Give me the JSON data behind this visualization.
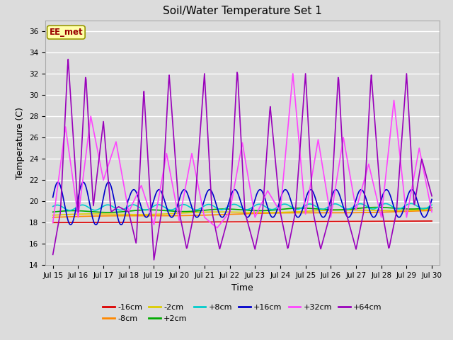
{
  "title": "Soil/Water Temperature Set 1",
  "xlabel": "Time",
  "ylabel": "Temperature (C)",
  "ylim": [
    14,
    37
  ],
  "yticks": [
    14,
    16,
    18,
    20,
    22,
    24,
    26,
    28,
    30,
    32,
    34,
    36
  ],
  "background_color": "#dcdcdc",
  "annotation_text": "EE_met",
  "annotation_bg": "#ffffaa",
  "annotation_border": "#999900",
  "annotation_text_color": "#990000",
  "colors": {
    "-16cm": "#dd0000",
    "-8cm": "#ff8800",
    "-2cm": "#ddcc00",
    "+2cm": "#00aa00",
    "+8cm": "#00cccc",
    "+16cm": "#0000cc",
    "+32cm": "#ff44ff",
    "+64cm": "#9900bb"
  },
  "x_tick_labels": [
    "Jul 15",
    "Jul 16",
    "Jul 17",
    "Jul 18",
    "Jul 19",
    "Jul 20",
    "Jul 21",
    "Jul 22",
    "Jul 23",
    "Jul 24",
    "Jul 25",
    "Jul 26",
    "Jul 27",
    "Jul 28",
    "Jul 29",
    "Jul 30"
  ]
}
